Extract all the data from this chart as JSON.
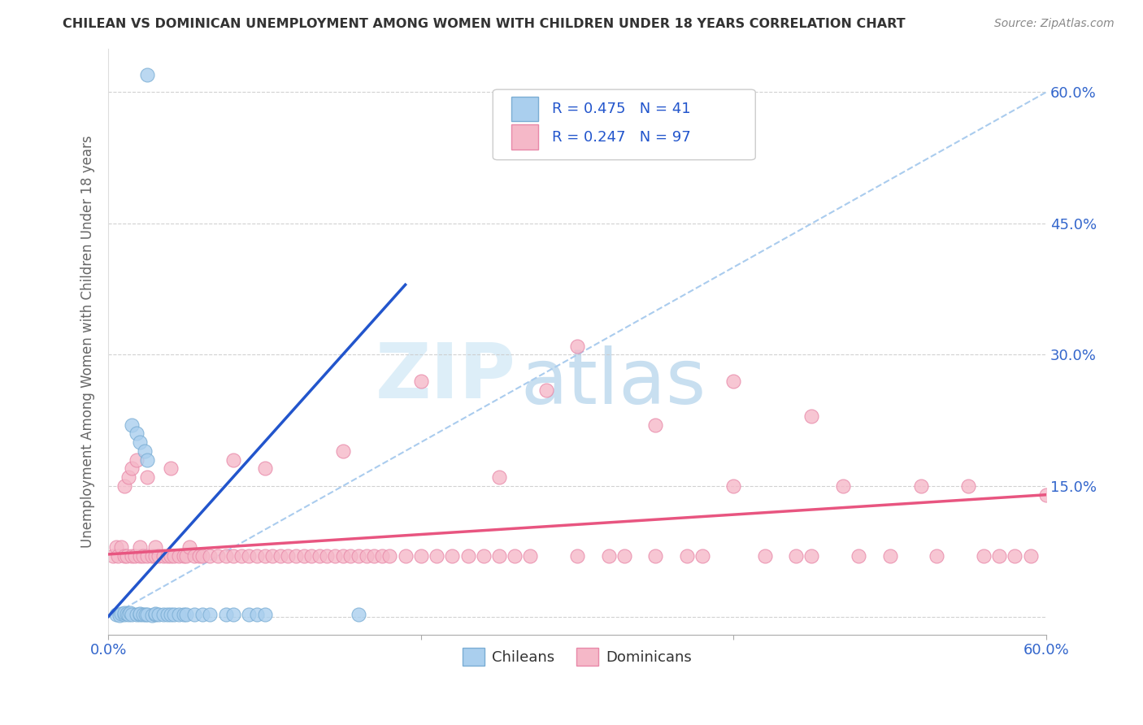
{
  "title": "CHILEAN VS DOMINICAN UNEMPLOYMENT AMONG WOMEN WITH CHILDREN UNDER 18 YEARS CORRELATION CHART",
  "source": "Source: ZipAtlas.com",
  "ylabel": "Unemployment Among Women with Children Under 18 years",
  "xlim": [
    0.0,
    0.6
  ],
  "ylim": [
    -0.02,
    0.65
  ],
  "ytick_vals": [
    0.0,
    0.15,
    0.3,
    0.45,
    0.6
  ],
  "ytick_labels": [
    "",
    "15.0%",
    "30.0%",
    "45.0%",
    "60.0%"
  ],
  "chilean_color": "#aacfee",
  "chilean_edge": "#7aadd4",
  "dominican_color": "#f5b8c8",
  "dominican_edge": "#e888a8",
  "chilean_line_color": "#2255cc",
  "dominican_line_color": "#e85580",
  "diag_line_color": "#aaccee",
  "R_chilean": 0.475,
  "N_chilean": 41,
  "R_dominican": 0.247,
  "N_dominican": 97,
  "watermark_zip": "ZIP",
  "watermark_atlas": "atlas",
  "chilean_x": [
    0.005,
    0.007,
    0.008,
    0.01,
    0.01,
    0.012,
    0.013,
    0.014,
    0.015,
    0.015,
    0.018,
    0.018,
    0.02,
    0.02,
    0.02,
    0.022,
    0.023,
    0.024,
    0.025,
    0.025,
    0.028,
    0.03,
    0.03,
    0.032,
    0.035,
    0.038,
    0.04,
    0.042,
    0.045,
    0.048,
    0.05,
    0.055,
    0.06,
    0.065,
    0.075,
    0.08,
    0.09,
    0.095,
    0.1,
    0.16,
    0.025
  ],
  "chilean_y": [
    0.003,
    0.002,
    0.004,
    0.003,
    0.005,
    0.004,
    0.003,
    0.005,
    0.003,
    0.22,
    0.003,
    0.21,
    0.003,
    0.2,
    0.004,
    0.003,
    0.19,
    0.003,
    0.003,
    0.18,
    0.002,
    0.003,
    0.004,
    0.003,
    0.003,
    0.003,
    0.003,
    0.003,
    0.003,
    0.003,
    0.003,
    0.003,
    0.003,
    0.003,
    0.003,
    0.003,
    0.003,
    0.003,
    0.003,
    0.003,
    0.62
  ],
  "dominican_x": [
    0.003,
    0.005,
    0.006,
    0.008,
    0.01,
    0.01,
    0.012,
    0.013,
    0.015,
    0.015,
    0.017,
    0.018,
    0.02,
    0.02,
    0.022,
    0.025,
    0.025,
    0.028,
    0.03,
    0.03,
    0.032,
    0.035,
    0.038,
    0.04,
    0.04,
    0.042,
    0.045,
    0.048,
    0.05,
    0.052,
    0.055,
    0.058,
    0.06,
    0.065,
    0.07,
    0.075,
    0.08,
    0.085,
    0.09,
    0.095,
    0.1,
    0.105,
    0.11,
    0.115,
    0.12,
    0.125,
    0.13,
    0.135,
    0.14,
    0.145,
    0.15,
    0.155,
    0.16,
    0.165,
    0.17,
    0.175,
    0.18,
    0.19,
    0.2,
    0.21,
    0.22,
    0.23,
    0.24,
    0.25,
    0.26,
    0.27,
    0.28,
    0.3,
    0.32,
    0.33,
    0.35,
    0.37,
    0.38,
    0.4,
    0.42,
    0.44,
    0.45,
    0.47,
    0.48,
    0.5,
    0.52,
    0.53,
    0.55,
    0.56,
    0.57,
    0.58,
    0.59,
    0.6,
    0.4,
    0.3,
    0.2,
    0.1,
    0.08,
    0.35,
    0.45,
    0.25,
    0.15
  ],
  "dominican_y": [
    0.07,
    0.08,
    0.07,
    0.08,
    0.07,
    0.15,
    0.07,
    0.16,
    0.07,
    0.17,
    0.07,
    0.18,
    0.07,
    0.08,
    0.07,
    0.07,
    0.16,
    0.07,
    0.07,
    0.08,
    0.07,
    0.07,
    0.07,
    0.07,
    0.17,
    0.07,
    0.07,
    0.07,
    0.07,
    0.08,
    0.07,
    0.07,
    0.07,
    0.07,
    0.07,
    0.07,
    0.07,
    0.07,
    0.07,
    0.07,
    0.07,
    0.07,
    0.07,
    0.07,
    0.07,
    0.07,
    0.07,
    0.07,
    0.07,
    0.07,
    0.07,
    0.07,
    0.07,
    0.07,
    0.07,
    0.07,
    0.07,
    0.07,
    0.07,
    0.07,
    0.07,
    0.07,
    0.07,
    0.07,
    0.07,
    0.07,
    0.26,
    0.07,
    0.07,
    0.07,
    0.07,
    0.07,
    0.07,
    0.15,
    0.07,
    0.07,
    0.07,
    0.15,
    0.07,
    0.07,
    0.15,
    0.07,
    0.15,
    0.07,
    0.07,
    0.07,
    0.07,
    0.14,
    0.27,
    0.31,
    0.27,
    0.17,
    0.18,
    0.22,
    0.23,
    0.16,
    0.19
  ]
}
